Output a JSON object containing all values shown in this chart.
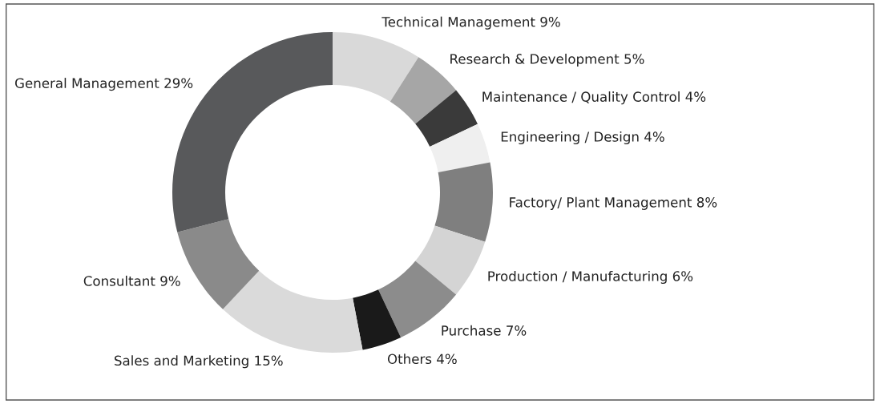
{
  "chart_data": {
    "type": "donut",
    "categories": [
      "Technical Management 9%",
      "Research & Development 5%",
      "Maintenance / Quality Control 4%",
      "Engineering / Design 4%",
      "Factory/ Plant Management 8%",
      "Production / Manufacturing 6%",
      "Purchase 7%",
      "Others 4%",
      "Sales and Marketing 15%",
      "Consultant 9%",
      "General Management 29%"
    ],
    "values": [
      9,
      5,
      4,
      4,
      8,
      6,
      7,
      4,
      15,
      9,
      29
    ],
    "colors": [
      "#d9d9d9",
      "#a6a6a6",
      "#3a3a3a",
      "#efefef",
      "#7f7f7f",
      "#d4d4d4",
      "#8c8c8c",
      "#1a1a1a",
      "#dadada",
      "#8a8a8a",
      "#58595b"
    ]
  }
}
